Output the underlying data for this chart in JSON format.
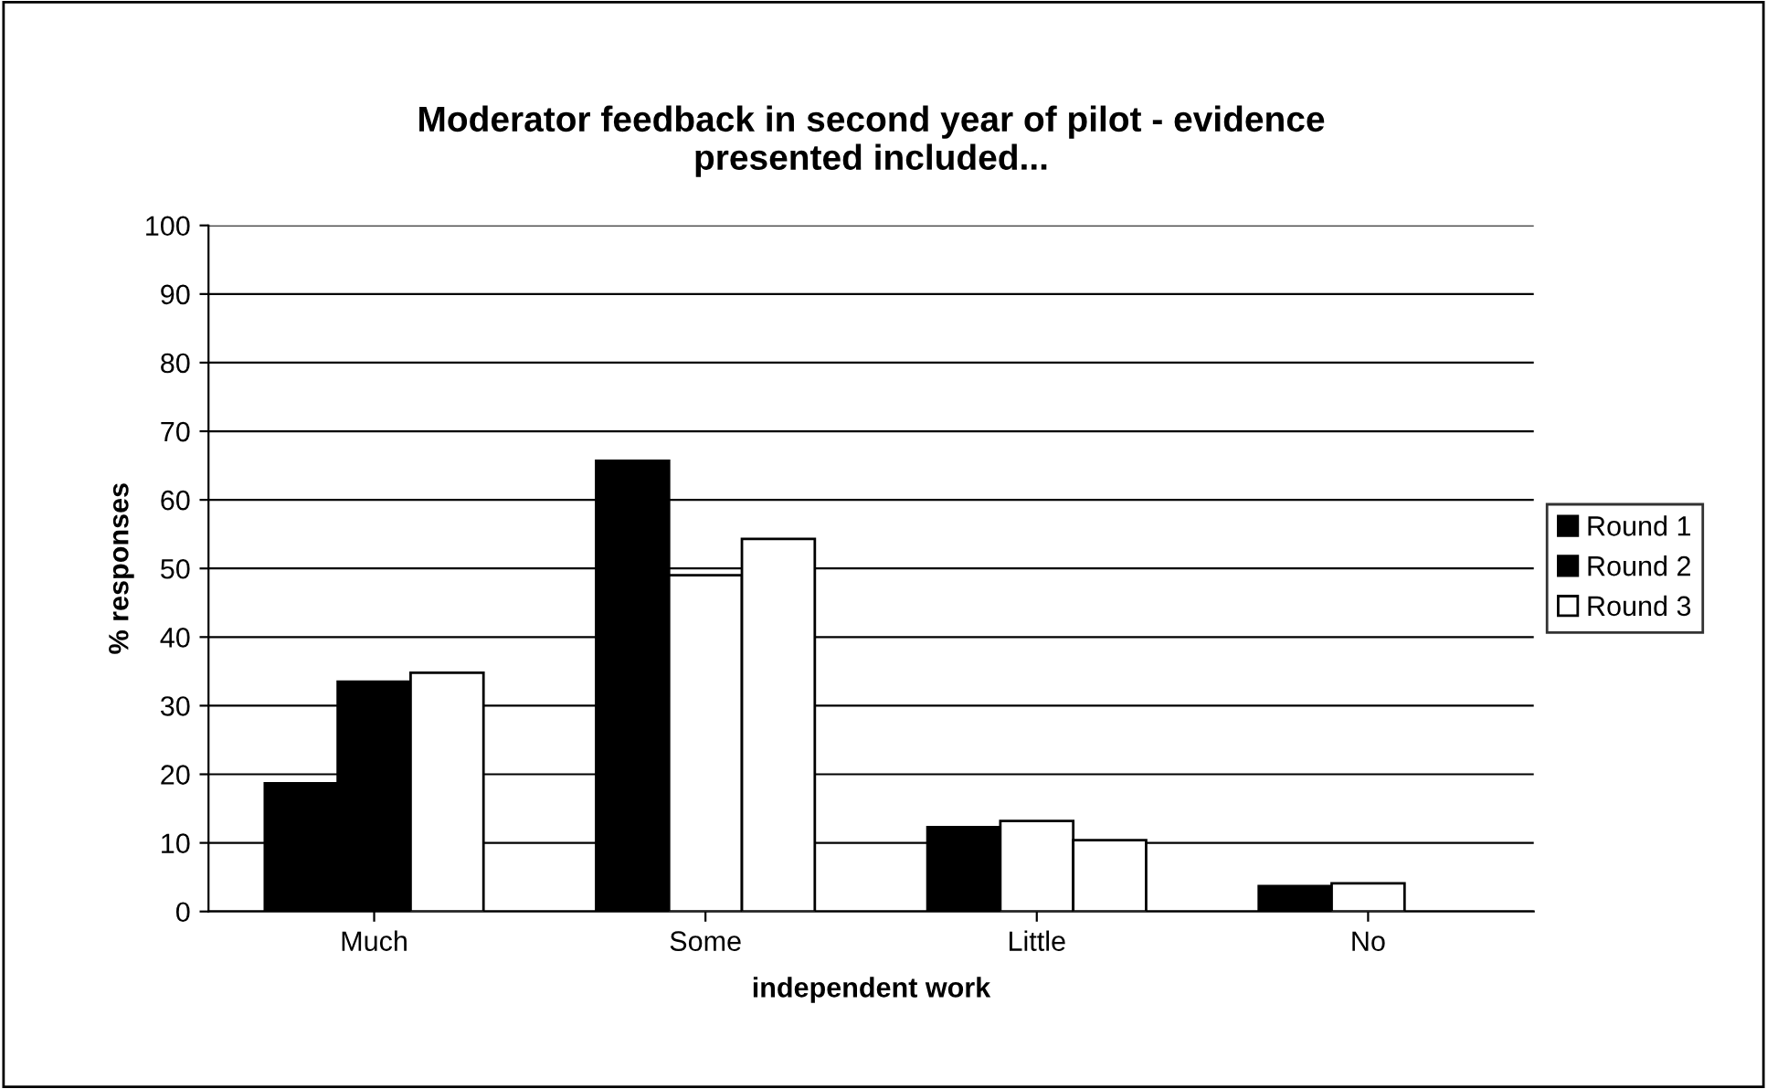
{
  "chart_data": {
    "type": "bar",
    "title": "Moderator feedback in second year of pilot - evidence\npresented included...",
    "xlabel": "independent work",
    "ylabel": "% responses",
    "categories": [
      "Much",
      "Some",
      "Little",
      "No"
    ],
    "series": [
      {
        "name": "Round 1",
        "color": "#000000",
        "values": [
          18.7,
          65.7,
          12.3,
          3.7
        ]
      },
      {
        "name": "Round 2",
        "color": "#000000",
        "colors": [
          "#000000",
          "#ffffff",
          "#ffffff",
          "#ffffff"
        ],
        "values": [
          33.5,
          49.0,
          13.2,
          4.1
        ]
      },
      {
        "name": "Round 3",
        "color": "#ffffff",
        "values": [
          34.8,
          54.3,
          10.4,
          null
        ]
      }
    ],
    "ylim": [
      0,
      100
    ],
    "yticks": [
      0,
      10,
      20,
      30,
      40,
      50,
      60,
      70,
      80,
      90,
      100
    ],
    "grid": "y",
    "legend": "right"
  }
}
